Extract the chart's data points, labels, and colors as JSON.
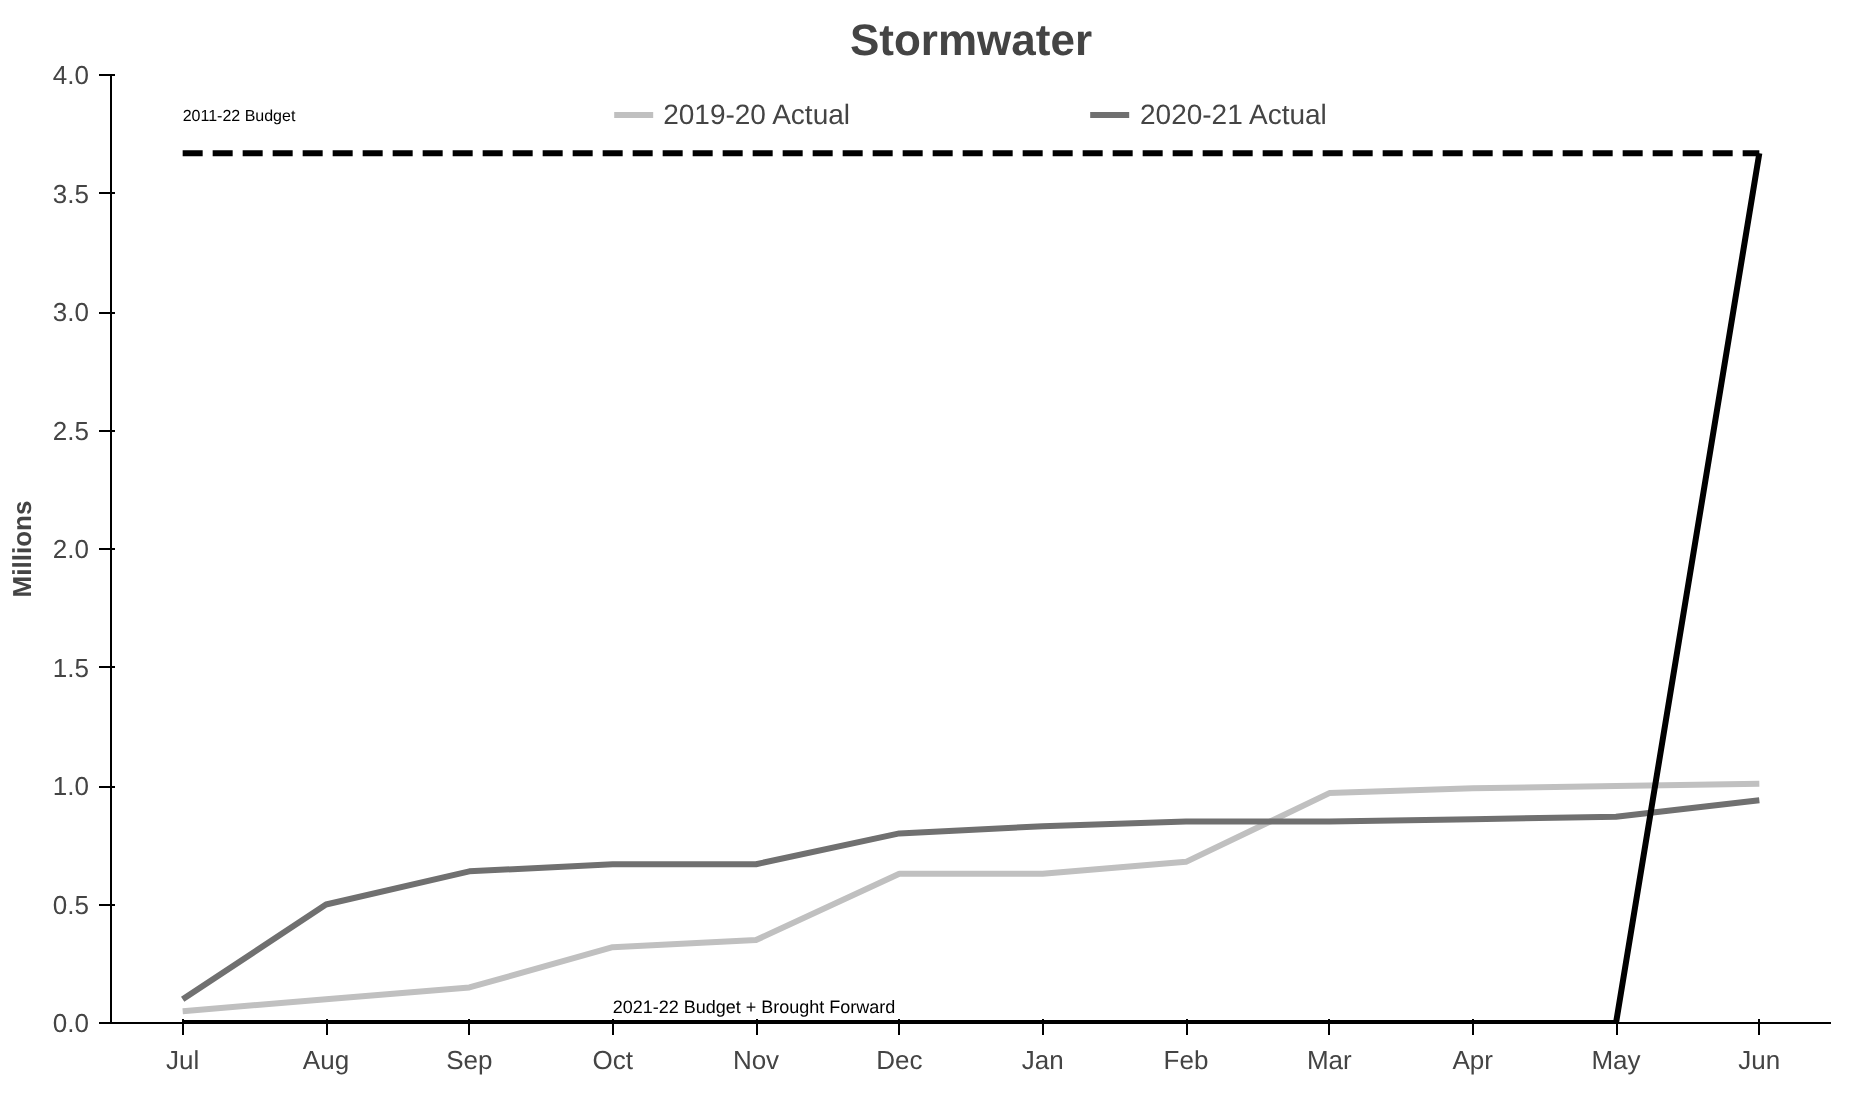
{
  "chart_data": {
    "type": "line",
    "title": "Stormwater",
    "ylabel": "Millions",
    "categories": [
      "Jul",
      "Aug",
      "Sep",
      "Oct",
      "Nov",
      "Dec",
      "Jan",
      "Feb",
      "Mar",
      "Apr",
      "May",
      "Jun"
    ],
    "series": [
      {
        "name": "2019-20 Actual",
        "color": "#c0c0c0",
        "values": [
          0.05,
          0.1,
          0.15,
          0.32,
          0.35,
          0.63,
          0.63,
          0.68,
          0.97,
          0.99,
          1.0,
          1.01
        ]
      },
      {
        "name": "2020-21 Actual",
        "color": "#707070",
        "values": [
          0.1,
          0.5,
          0.64,
          0.67,
          0.67,
          0.8,
          0.83,
          0.85,
          0.85,
          0.86,
          0.87,
          0.94
        ]
      },
      {
        "name": "2021-22 Budget + Brought Forward",
        "color": "#000000",
        "values": [
          0,
          0,
          0,
          0,
          0,
          0,
          0,
          0,
          0,
          0,
          0,
          3.67
        ]
      }
    ],
    "ylim": [
      0,
      4
    ],
    "yticks": [
      {
        "value": 0,
        "label": "0.0"
      },
      0.5,
      {
        "value": 1,
        "label": "1.0"
      },
      1.5,
      {
        "value": 2,
        "label": "2.0"
      },
      2.5,
      {
        "value": 3,
        "label": "3.0"
      },
      3.5,
      {
        "value": 4,
        "label": "4.0"
      }
    ],
    "ref_lines": [
      {
        "axis": "y",
        "value": 3.67,
        "label": "2011-22 Budget",
        "color": "#000000",
        "line_style": "dashed"
      }
    ],
    "legend": "top",
    "grid": false,
    "line_style": "solid",
    "marker": "none"
  }
}
